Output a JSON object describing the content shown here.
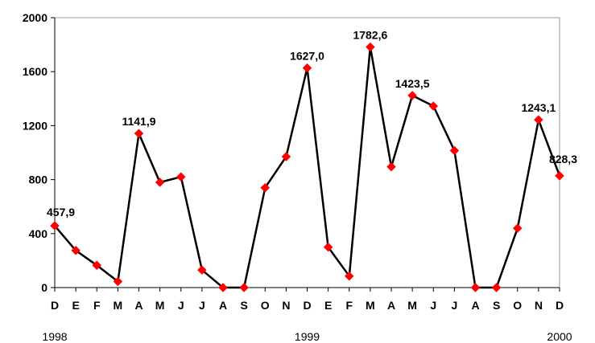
{
  "chart_data": {
    "type": "line",
    "categories": [
      "D",
      "E",
      "F",
      "M",
      "A",
      "M",
      "J",
      "J",
      "A",
      "S",
      "O",
      "N",
      "D",
      "E",
      "F",
      "M",
      "A",
      "M",
      "J",
      "J",
      "A",
      "S",
      "O",
      "N",
      "D"
    ],
    "values": [
      457.9,
      275,
      165,
      45,
      1141.9,
      780,
      820,
      130,
      0,
      0,
      740,
      970,
      1627.0,
      300,
      85,
      1782.6,
      895,
      1423.5,
      1345,
      1015,
      0,
      0,
      440,
      1243.1,
      828.3
    ],
    "data_labels": [
      {
        "index": 0,
        "text": "457,9"
      },
      {
        "index": 4,
        "text": "1141,9"
      },
      {
        "index": 12,
        "text": "1627,0"
      },
      {
        "index": 15,
        "text": "1782,6"
      },
      {
        "index": 17,
        "text": "1423,5"
      },
      {
        "index": 23,
        "text": "1243,1"
      },
      {
        "index": 24,
        "text": "828,3"
      }
    ],
    "year_labels": [
      {
        "index": 0,
        "text": "1998"
      },
      {
        "index": 12,
        "text": "1999"
      },
      {
        "index": 24,
        "text": "2000"
      }
    ],
    "ylim": [
      0,
      2000
    ],
    "yticks": [
      "0",
      "400",
      "800",
      "1200",
      "1600",
      "2000"
    ],
    "title": "",
    "xlabel": "",
    "ylabel": "",
    "grid": false,
    "legend": "none",
    "colors": {
      "line": "#000000",
      "marker": "#ff0000",
      "axis": "#000000"
    }
  }
}
